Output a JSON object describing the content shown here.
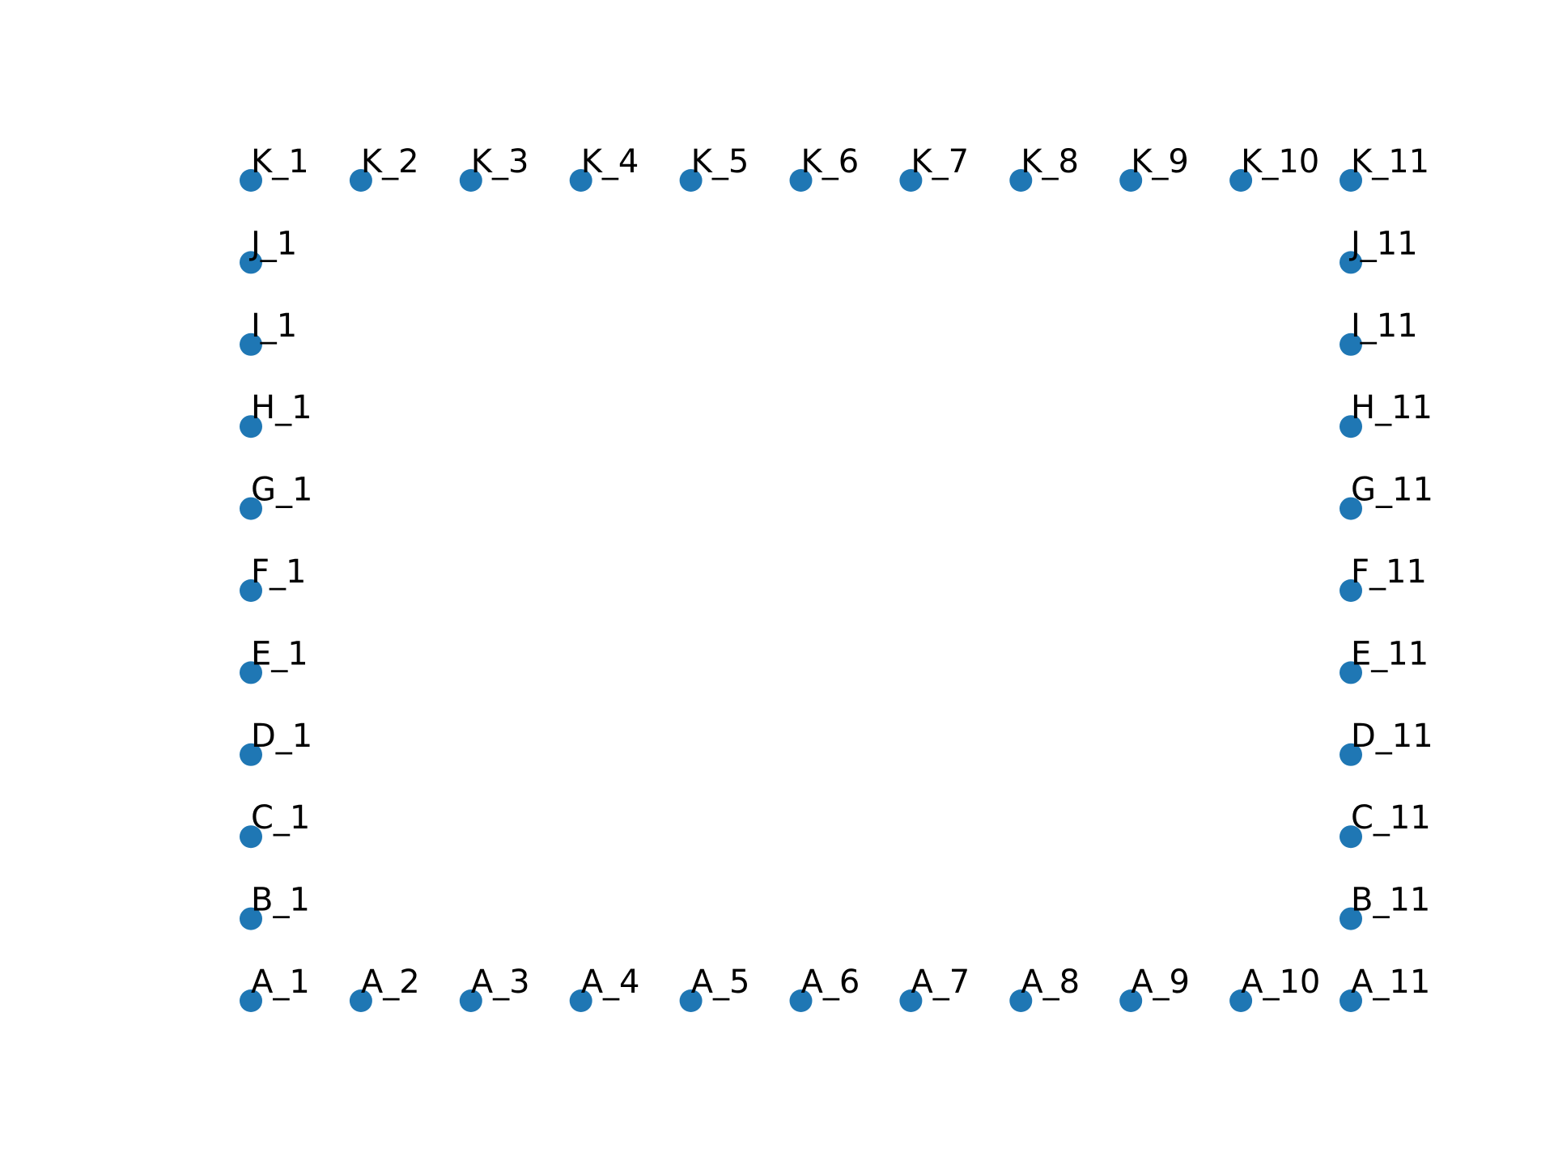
{
  "chart_data": {
    "type": "scatter",
    "title": "",
    "xlabel": "",
    "ylabel": "",
    "axes_visible": false,
    "grid": false,
    "xlim": [
      1,
      11
    ],
    "ylim": [
      0,
      10
    ],
    "marker_color": "#1f77b4",
    "label_color": "#000000",
    "points": [
      {
        "label": "A_1",
        "x": 1,
        "y": 0
      },
      {
        "label": "A_2",
        "x": 2,
        "y": 0
      },
      {
        "label": "A_3",
        "x": 3,
        "y": 0
      },
      {
        "label": "A_4",
        "x": 4,
        "y": 0
      },
      {
        "label": "A_5",
        "x": 5,
        "y": 0
      },
      {
        "label": "A_6",
        "x": 6,
        "y": 0
      },
      {
        "label": "A_7",
        "x": 7,
        "y": 0
      },
      {
        "label": "A_8",
        "x": 8,
        "y": 0
      },
      {
        "label": "A_9",
        "x": 9,
        "y": 0
      },
      {
        "label": "A_10",
        "x": 10,
        "y": 0
      },
      {
        "label": "A_11",
        "x": 11,
        "y": 0
      },
      {
        "label": "K_1",
        "x": 1,
        "y": 10
      },
      {
        "label": "K_2",
        "x": 2,
        "y": 10
      },
      {
        "label": "K_3",
        "x": 3,
        "y": 10
      },
      {
        "label": "K_4",
        "x": 4,
        "y": 10
      },
      {
        "label": "K_5",
        "x": 5,
        "y": 10
      },
      {
        "label": "K_6",
        "x": 6,
        "y": 10
      },
      {
        "label": "K_7",
        "x": 7,
        "y": 10
      },
      {
        "label": "K_8",
        "x": 8,
        "y": 10
      },
      {
        "label": "K_9",
        "x": 9,
        "y": 10
      },
      {
        "label": "K_10",
        "x": 10,
        "y": 10
      },
      {
        "label": "K_11",
        "x": 11,
        "y": 10
      },
      {
        "label": "B_1",
        "x": 1,
        "y": 1
      },
      {
        "label": "C_1",
        "x": 1,
        "y": 2
      },
      {
        "label": "D_1",
        "x": 1,
        "y": 3
      },
      {
        "label": "E_1",
        "x": 1,
        "y": 4
      },
      {
        "label": "F_1",
        "x": 1,
        "y": 5
      },
      {
        "label": "G_1",
        "x": 1,
        "y": 6
      },
      {
        "label": "H_1",
        "x": 1,
        "y": 7
      },
      {
        "label": "I_1",
        "x": 1,
        "y": 8
      },
      {
        "label": "J_1",
        "x": 1,
        "y": 9
      },
      {
        "label": "B_11",
        "x": 11,
        "y": 1
      },
      {
        "label": "C_11",
        "x": 11,
        "y": 2
      },
      {
        "label": "D_11",
        "x": 11,
        "y": 3
      },
      {
        "label": "E_11",
        "x": 11,
        "y": 4
      },
      {
        "label": "F_11",
        "x": 11,
        "y": 5
      },
      {
        "label": "G_11",
        "x": 11,
        "y": 6
      },
      {
        "label": "H_11",
        "x": 11,
        "y": 7
      },
      {
        "label": "I_11",
        "x": 11,
        "y": 8
      },
      {
        "label": "J_11",
        "x": 11,
        "y": 9
      }
    ]
  }
}
